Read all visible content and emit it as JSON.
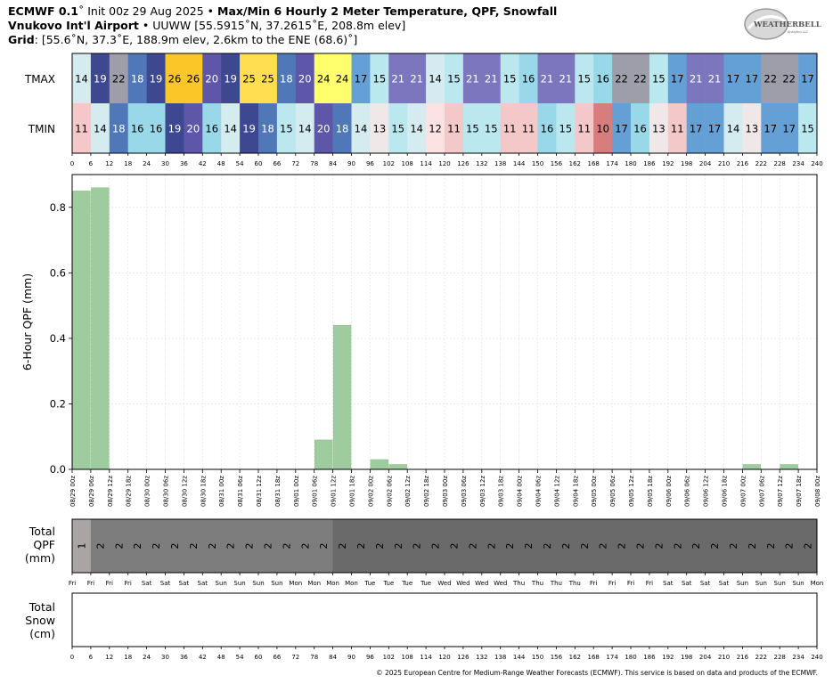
{
  "header": {
    "line1_bold1": "ECMWF 0.1",
    "line1_rest1": "˚ Init 00z 29 Aug 2025 • ",
    "line1_bold2": "Max/Min 6 Hourly 2 Meter Temperature,  QPF,  Snowfall",
    "line2_bold": "Vnukovo Int'l Airport",
    "line2_rest": " • UUWW [55.5915˚N, 37.2615˚E, 208.8m elev]",
    "line3_bold": "Grid",
    "line3_rest": ": [55.6˚N, 37.3˚E, 188.9m elev, 2.6km to the ENE (68.6)˚]"
  },
  "logo": {
    "text1": "WEATHERBELL",
    "text2": "Analytics LLC"
  },
  "colors": {
    "bar": "#9fcc9f",
    "bar_edge": "#7fb87f",
    "qpf_light": "#a9a5a5",
    "qpf_mid": "#7d7d7d",
    "qpf_dark": "#6a6a6a"
  },
  "chart_data": [
    {
      "type": "heatmap",
      "row_labels": [
        "TMAX",
        "TMIN"
      ],
      "columns": 40,
      "tmax": [
        14,
        19,
        22,
        18,
        19,
        26,
        26,
        20,
        19,
        25,
        25,
        18,
        20,
        24,
        24,
        17,
        15,
        21,
        21,
        14,
        15,
        21,
        21,
        15,
        16,
        21,
        21,
        15,
        16,
        22,
        22,
        15,
        17,
        21,
        21,
        17,
        17,
        22,
        22,
        17
      ],
      "tmin": [
        11,
        14,
        18,
        16,
        16,
        19,
        20,
        16,
        14,
        19,
        18,
        15,
        14,
        20,
        18,
        14,
        13,
        15,
        14,
        12,
        11,
        15,
        15,
        11,
        11,
        16,
        15,
        11,
        10,
        17,
        16,
        13,
        11,
        17,
        17,
        14,
        13,
        17,
        17,
        15
      ],
      "xticks": [
        "0",
        "6",
        "12",
        "18",
        "24",
        "30",
        "36",
        "42",
        "48",
        "54",
        "60",
        "66",
        "72",
        "78",
        "84",
        "90",
        "96",
        "102",
        "108",
        "114",
        "120",
        "126",
        "132",
        "138",
        "144",
        "150",
        "156",
        "162",
        "168",
        "174",
        "180",
        "186",
        "192",
        "198",
        "204",
        "210",
        "216",
        "222",
        "228",
        "234",
        "240"
      ]
    },
    {
      "type": "bar",
      "ylabel": "6-Hour QPF (mm)",
      "ylim": [
        0,
        0.9
      ],
      "yticks": [
        "0.0",
        "0.2",
        "0.4",
        "0.6",
        "0.8"
      ],
      "grid": true,
      "values": [
        0.85,
        0.86,
        0,
        0,
        0,
        0,
        0,
        0,
        0,
        0,
        0,
        0,
        0,
        0.09,
        0.44,
        0,
        0.03,
        0.015,
        0,
        0,
        0,
        0,
        0,
        0,
        0,
        0,
        0,
        0,
        0,
        0,
        0,
        0,
        0,
        0,
        0,
        0,
        0.015,
        0,
        0.015,
        0
      ],
      "xticks": [
        "08/29 00z",
        "08/29 06z",
        "08/29 12z",
        "08/29 18z",
        "08/30 00z",
        "08/30 06z",
        "08/30 12z",
        "08/30 18z",
        "08/31 00z",
        "08/31 06z",
        "08/31 12z",
        "08/31 18z",
        "09/01 00z",
        "09/01 06z",
        "09/01 12z",
        "09/01 18z",
        "09/02 00z",
        "09/02 06z",
        "09/02 12z",
        "09/02 18z",
        "09/03 00z",
        "09/03 06z",
        "09/03 12z",
        "09/03 18z",
        "09/04 00z",
        "09/04 06z",
        "09/04 12z",
        "09/04 18z",
        "09/05 00z",
        "09/05 06z",
        "09/05 12z",
        "09/05 18z",
        "09/06 00z",
        "09/06 06z",
        "09/06 12z",
        "09/06 18z",
        "09/07 00z",
        "09/07 06z",
        "09/07 12z",
        "09/07 18z",
        "09/08 00z"
      ]
    },
    {
      "type": "area",
      "ylabel": [
        "Total",
        "QPF",
        "(mm)"
      ],
      "values": [
        1,
        2,
        2,
        2,
        2,
        2,
        2,
        2,
        2,
        2,
        2,
        2,
        2,
        2,
        2,
        2,
        2,
        2,
        2,
        2,
        2,
        2,
        2,
        2,
        2,
        2,
        2,
        2,
        2,
        2,
        2,
        2,
        2,
        2,
        2,
        2,
        2,
        2,
        2,
        2
      ],
      "xticks": [
        "Fri",
        "Fri",
        "Fri",
        "Fri",
        "Sat",
        "Sat",
        "Sat",
        "Sat",
        "Sun",
        "Sun",
        "Sun",
        "Sun",
        "Mon",
        "Mon",
        "Mon",
        "Mon",
        "Tue",
        "Tue",
        "Tue",
        "Tue",
        "Wed",
        "Wed",
        "Wed",
        "Wed",
        "Thu",
        "Thu",
        "Thu",
        "Thu",
        "Fri",
        "Fri",
        "Fri",
        "Fri",
        "Sat",
        "Sat",
        "Sat",
        "Sat",
        "Sun",
        "Sun",
        "Sun",
        "Sun",
        "Mon"
      ]
    },
    {
      "type": "area",
      "ylabel": [
        "Total",
        "Snow",
        "(cm)"
      ],
      "values": [],
      "xticks": [
        "0",
        "6",
        "12",
        "18",
        "24",
        "30",
        "36",
        "42",
        "48",
        "54",
        "60",
        "66",
        "72",
        "78",
        "84",
        "90",
        "96",
        "102",
        "108",
        "114",
        "120",
        "126",
        "132",
        "138",
        "144",
        "150",
        "156",
        "162",
        "168",
        "174",
        "180",
        "186",
        "192",
        "198",
        "204",
        "210",
        "216",
        "222",
        "228",
        "234",
        "240"
      ]
    }
  ],
  "copyright": "© 2025 European Centre for Medium-Range Weather Forecasts (ECMWF). This service is based on data and products of the ECMWF."
}
